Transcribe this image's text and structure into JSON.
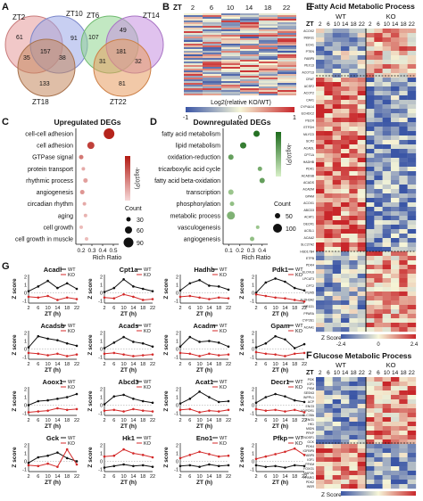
{
  "panelA": {
    "label": "A",
    "venn_left": {
      "sets": [
        "ZT2",
        "ZT10",
        "ZT18"
      ],
      "counts": [
        "61",
        "91",
        "157",
        "35",
        "38",
        "133"
      ],
      "colors": [
        "#e59a9a",
        "#9aa8e8",
        "#c4895f"
      ]
    },
    "venn_right": {
      "sets": [
        "ZT6",
        "ZT14",
        "ZT22"
      ],
      "counts": [
        "107",
        "49",
        "181",
        "31",
        "32",
        "81"
      ],
      "colors": [
        "#8fd68f",
        "#c690e0",
        "#e89c60"
      ]
    }
  },
  "panelB": {
    "label": "B",
    "zt_label": "ZT",
    "timepoints": [
      "2",
      "6",
      "10",
      "14",
      "18",
      "22"
    ],
    "colorbar_label": "Log2(relative KO/WT)",
    "colorbar_ticks": [
      "-1",
      "0",
      "1"
    ]
  },
  "panelC": {
    "label": "C",
    "title": "Upregulated DEGs",
    "terms": [
      "cell-cell adhesion",
      "cell adhesion",
      "GTPase signal",
      "protein transport",
      "rhythmic process",
      "angiogenesis",
      "circadian rhythm",
      "aging",
      "cell growth",
      "cell growth in muscle"
    ],
    "xlabel": "Rich Ratio",
    "xticks": [
      "0.2",
      "0.3",
      "0.4",
      "0.5"
    ],
    "color_label": "-log10(P)",
    "count_label": "Count",
    "count_levels": [
      "30",
      "60",
      "90"
    ]
  },
  "panelD": {
    "label": "D",
    "title": "Downregulated DEGs",
    "terms": [
      "fatty acid metabolism",
      "lipid metabolism",
      "oxidation-reduction",
      "tricarboxylic acid cycle",
      "fatty acid beta-oxidation",
      "transcription",
      "phosphorylation",
      "metabolic process",
      "vasculogenesis",
      "angiogenesis"
    ],
    "xlabel": "Rich Ratio",
    "xticks": [
      "0.1",
      "0.2",
      "0.3",
      "0.4"
    ],
    "color_label": "-log10(P)",
    "count_label": "Count",
    "count_levels": [
      "50",
      "100"
    ]
  },
  "panelE": {
    "label": "E",
    "title": "Fatty Acid Metabolic Process",
    "groups": [
      "WT",
      "KO"
    ],
    "zt_label": "ZT",
    "timepoints": [
      "2",
      "6",
      "10",
      "14",
      "18",
      "22"
    ],
    "colorbar_label": "Z Score",
    "colorbar_ticks": [
      "-2.4",
      "0",
      "2.4"
    ]
  },
  "panelF": {
    "label": "F",
    "title": "Glucose Metabolic Process",
    "groups": [
      "WT",
      "KO"
    ],
    "zt_label": "ZT",
    "timepoints": [
      "2",
      "6",
      "10",
      "14",
      "18",
      "22"
    ],
    "colorbar_label": "Z Score",
    "colorbar_ticks": [
      "-2.4",
      "0",
      "2.4"
    ]
  },
  "panelG": {
    "label": "G",
    "legend": [
      "WT",
      "KO"
    ],
    "series_colors": {
      "WT": "#111111",
      "KO": "#d42a2a"
    },
    "xlabel": "ZT (h)",
    "ylabel": "Z score",
    "xticks": [
      "2",
      "6",
      "10",
      "14",
      "18",
      "22"
    ],
    "yticks": [
      "-1",
      "0",
      "1",
      "2"
    ],
    "genes": [
      "Acadl",
      "Cpt1a",
      "Hadhb",
      "Pdk1",
      "Acadsb",
      "Acads",
      "Acadm",
      "Gpam",
      "Aoox1",
      "Abcd3",
      "Acat1",
      "Decr1",
      "Gck",
      "Hk1",
      "Eno1",
      "Pfkp"
    ]
  },
  "chart_data": [
    {
      "type": "line",
      "title": "Acadl",
      "x": [
        2,
        6,
        10,
        14,
        18,
        22
      ],
      "series": [
        {
          "name": "WT",
          "values": [
            0.2,
            0.8,
            1.5,
            0.6,
            1.2,
            0.5
          ]
        },
        {
          "name": "KO",
          "values": [
            -0.5,
            -0.6,
            -0.4,
            -0.9,
            -0.6,
            -0.8
          ]
        }
      ]
    },
    {
      "type": "line",
      "title": "Cpt1a",
      "x": [
        2,
        6,
        10,
        14,
        18,
        22
      ],
      "series": [
        {
          "name": "WT",
          "values": [
            0.1,
            0.6,
            1.7,
            0.8,
            0.5,
            0.2
          ]
        },
        {
          "name": "KO",
          "values": [
            -0.6,
            -0.7,
            -0.2,
            -0.5,
            -0.9,
            -0.8
          ]
        }
      ]
    },
    {
      "type": "line",
      "title": "Hadhb",
      "x": [
        2,
        6,
        10,
        14,
        18,
        22
      ],
      "series": [
        {
          "name": "WT",
          "values": [
            0.3,
            1.2,
            1.6,
            0.9,
            0.8,
            0.4
          ]
        },
        {
          "name": "KO",
          "values": [
            -0.5,
            -0.4,
            -0.6,
            -0.8,
            -0.6,
            -0.7
          ]
        }
      ]
    },
    {
      "type": "line",
      "title": "Pdk1",
      "x": [
        2,
        6,
        10,
        14,
        18,
        22
      ],
      "series": [
        {
          "name": "WT",
          "values": [
            0.0,
            1.3,
            1.8,
            1.4,
            0.6,
            0.3
          ]
        },
        {
          "name": "KO",
          "values": [
            -0.2,
            -0.4,
            -0.6,
            -0.7,
            -0.9,
            -1.1
          ]
        }
      ]
    },
    {
      "type": "line",
      "title": "Acadsb",
      "x": [
        2,
        6,
        10,
        14,
        18,
        22
      ],
      "series": [
        {
          "name": "WT",
          "values": [
            0.2,
            1.6,
            1.3,
            1.1,
            0.7,
            0.4
          ]
        },
        {
          "name": "KO",
          "values": [
            -0.5,
            -0.6,
            -0.8,
            -0.6,
            -0.9,
            -0.7
          ]
        }
      ]
    },
    {
      "type": "line",
      "title": "Acads",
      "x": [
        2,
        6,
        10,
        14,
        18,
        22
      ],
      "series": [
        {
          "name": "WT",
          "values": [
            0.1,
            0.8,
            1.5,
            0.9,
            0.7,
            0.3
          ]
        },
        {
          "name": "KO",
          "values": [
            -0.6,
            -0.5,
            -0.7,
            -0.9,
            -0.8,
            -0.7
          ]
        }
      ]
    },
    {
      "type": "line",
      "title": "Acadm",
      "x": [
        2,
        6,
        10,
        14,
        18,
        22
      ],
      "series": [
        {
          "name": "WT",
          "values": [
            0.3,
            1.5,
            0.9,
            1.0,
            0.8,
            0.3
          ]
        },
        {
          "name": "KO",
          "values": [
            -0.5,
            -0.6,
            -0.9,
            -0.6,
            -0.8,
            -0.7
          ]
        }
      ]
    },
    {
      "type": "line",
      "title": "Gpam",
      "x": [
        2,
        6,
        10,
        14,
        18,
        22
      ],
      "series": [
        {
          "name": "WT",
          "values": [
            0.2,
            0.7,
            1.6,
            1.2,
            0.1,
            0.6
          ]
        },
        {
          "name": "KO",
          "values": [
            -0.4,
            -0.6,
            -0.7,
            -0.9,
            -0.6,
            -0.5
          ]
        }
      ]
    },
    {
      "type": "line",
      "title": "Aoox1",
      "x": [
        2,
        6,
        10,
        14,
        18,
        22
      ],
      "series": [
        {
          "name": "WT",
          "values": [
            0.0,
            0.5,
            0.6,
            0.8,
            1.0,
            1.4
          ]
        },
        {
          "name": "KO",
          "values": [
            -0.9,
            -0.8,
            -0.7,
            -0.4,
            -0.6,
            -0.5
          ]
        }
      ]
    },
    {
      "type": "line",
      "title": "Abcd3",
      "x": [
        2,
        6,
        10,
        14,
        18,
        22
      ],
      "series": [
        {
          "name": "WT",
          "values": [
            0.1,
            1.1,
            1.3,
            0.8,
            0.5,
            0.3
          ]
        },
        {
          "name": "KO",
          "values": [
            -0.7,
            -0.6,
            -0.8,
            -0.5,
            -0.7,
            -0.8
          ]
        }
      ]
    },
    {
      "type": "line",
      "title": "Acat1",
      "x": [
        2,
        6,
        10,
        14,
        18,
        22
      ],
      "series": [
        {
          "name": "WT",
          "values": [
            0.2,
            0.8,
            1.7,
            1.0,
            0.4,
            0.5
          ]
        },
        {
          "name": "KO",
          "values": [
            -0.6,
            -0.5,
            -0.9,
            -0.7,
            -0.8,
            -0.6
          ]
        }
      ]
    },
    {
      "type": "line",
      "title": "Decr1",
      "x": [
        2,
        6,
        10,
        14,
        18,
        22
      ],
      "series": [
        {
          "name": "WT",
          "values": [
            0.3,
            1.0,
            1.4,
            1.1,
            0.6,
            0.4
          ]
        },
        {
          "name": "KO",
          "values": [
            -0.5,
            -0.7,
            -0.6,
            -0.8,
            -0.6,
            -0.9
          ]
        }
      ]
    },
    {
      "type": "line",
      "title": "Gck",
      "x": [
        2,
        6,
        10,
        14,
        18,
        22
      ],
      "series": [
        {
          "name": "WT",
          "values": [
            -0.2,
            0.5,
            0.7,
            1.1,
            0.4,
            0.0
          ]
        },
        {
          "name": "KO",
          "values": [
            -0.5,
            -0.6,
            -0.3,
            -0.7,
            1.5,
            -0.4
          ]
        }
      ]
    },
    {
      "type": "line",
      "title": "Hk1",
      "x": [
        2,
        6,
        10,
        14,
        18,
        22
      ],
      "series": [
        {
          "name": "WT",
          "values": [
            -0.8,
            -0.6,
            -0.4,
            -0.6,
            -0.5,
            -0.7
          ]
        },
        {
          "name": "KO",
          "values": [
            0.6,
            0.7,
            1.5,
            1.0,
            0.8,
            0.5
          ]
        }
      ]
    },
    {
      "type": "line",
      "title": "Eno1",
      "x": [
        2,
        6,
        10,
        14,
        18,
        22
      ],
      "series": [
        {
          "name": "WT",
          "values": [
            -0.6,
            -0.5,
            -0.7,
            -0.4,
            -0.6,
            -0.5
          ]
        },
        {
          "name": "KO",
          "values": [
            0.4,
            0.8,
            1.2,
            0.9,
            0.6,
            0.7
          ]
        }
      ]
    },
    {
      "type": "line",
      "title": "Pfkp",
      "x": [
        2,
        6,
        10,
        14,
        18,
        22
      ],
      "series": [
        {
          "name": "WT",
          "values": [
            -0.5,
            -0.7,
            -0.6,
            -0.8,
            -0.5,
            -0.6
          ]
        },
        {
          "name": "KO",
          "values": [
            0.3,
            0.6,
            0.9,
            1.2,
            1.6,
            0.8
          ]
        }
      ]
    }
  ]
}
